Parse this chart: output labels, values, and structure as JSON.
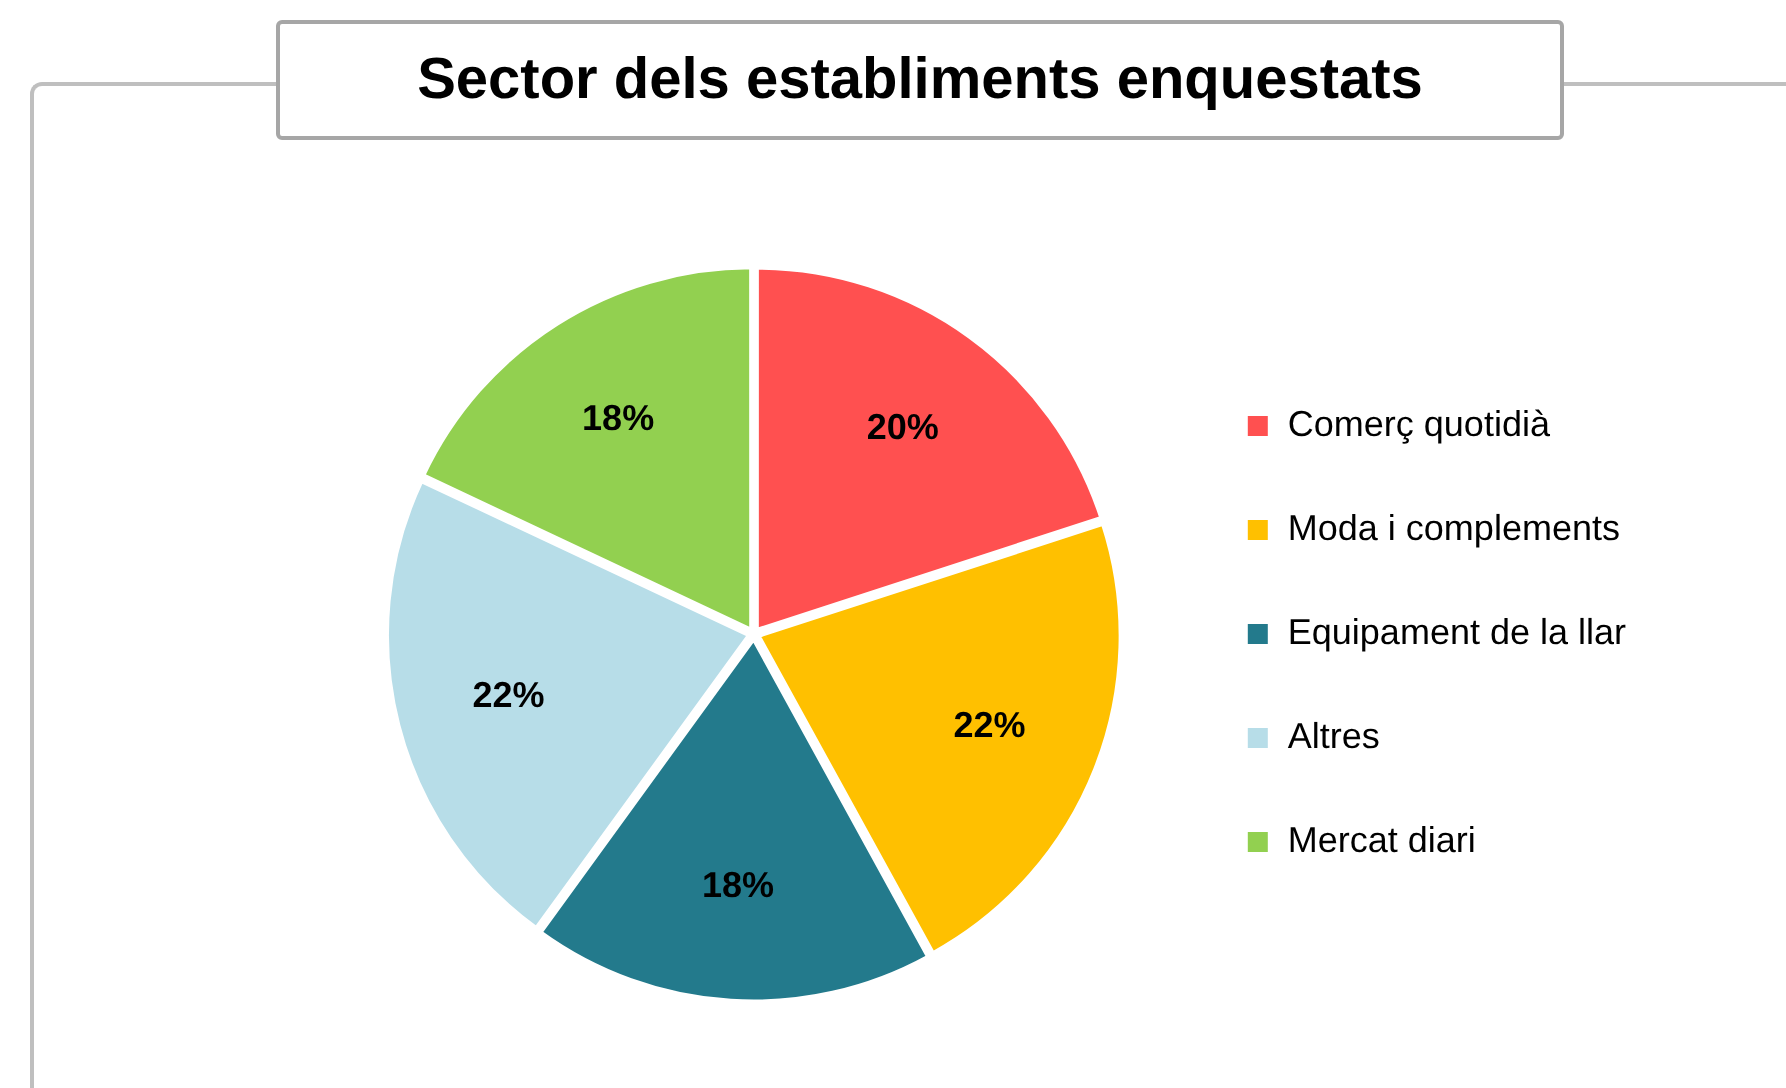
{
  "chart_data": {
    "type": "pie",
    "title": "Sector dels establiments enquestats",
    "categories": [
      "Comerç quotidià",
      "Moda i complements",
      "Equipament de la llar",
      "Altres",
      "Mercat diari"
    ],
    "values": [
      20,
      22,
      18,
      22,
      18
    ],
    "colors": [
      "#ff5050",
      "#ffc000",
      "#237a8c",
      "#b7dde8",
      "#92d050"
    ],
    "value_labels": [
      "20%",
      "22%",
      "18%",
      "22%",
      "18%"
    ],
    "legend": "right"
  }
}
